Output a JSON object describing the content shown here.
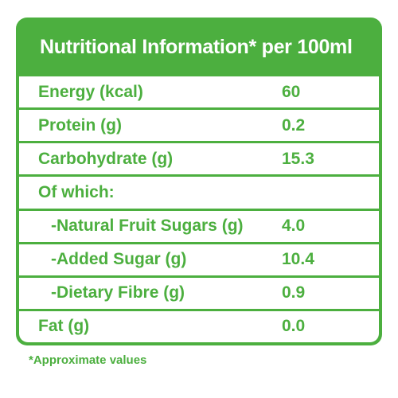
{
  "header": {
    "title": "Nutritional Information* per 100ml"
  },
  "rows": [
    {
      "label": "Energy (kcal)",
      "value": "60"
    },
    {
      "label": "Protein (g)",
      "value": "0.2"
    },
    {
      "label": "Carbohydrate (g)",
      "value": "15.3"
    },
    {
      "label": "Of which:",
      "value": ""
    },
    {
      "label": "-Natural Fruit Sugars (g)",
      "value": "4.0"
    },
    {
      "label": "-Added Sugar (g)",
      "value": "10.4"
    },
    {
      "label": "-Dietary Fibre (g)",
      "value": "0.9"
    },
    {
      "label": "Fat (g)",
      "value": "0.0"
    }
  ],
  "footnote": "*Approximate values",
  "colors": {
    "accent": "#4caf3f",
    "background": "#ffffff"
  }
}
